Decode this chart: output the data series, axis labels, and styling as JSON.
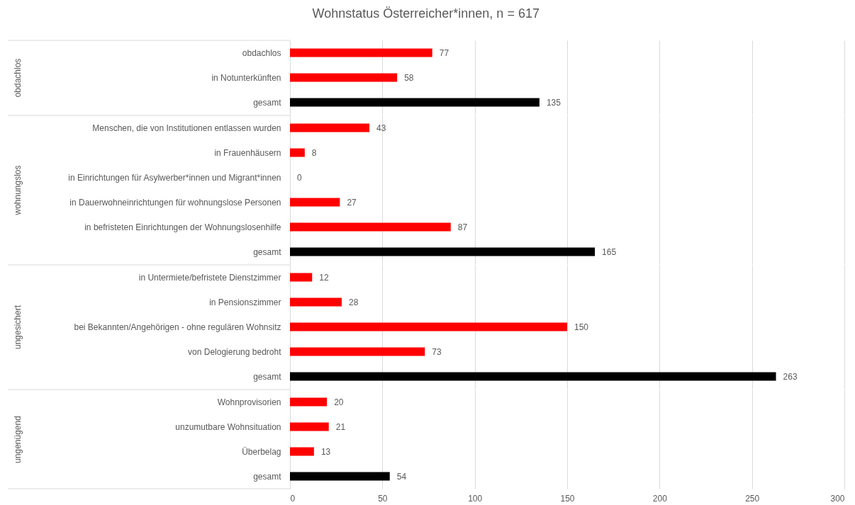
{
  "chart_data": [
    {
      "type": "bar",
      "orientation": "horizontal",
      "title": "Wohnstatus Österreicher*innen, n = 617",
      "ylabel": "obdachlos",
      "categories": [
        "obdachlos",
        "in Notunterkünften",
        "gesamt"
      ],
      "values": [
        77,
        58,
        135
      ],
      "colors": [
        "#ff0000",
        "#ff0000",
        "#000000"
      ],
      "xlim": [
        0,
        300
      ],
      "xticks": [
        0,
        50,
        100,
        150,
        200,
        250,
        300
      ],
      "data_labels": true,
      "grid": "x",
      "tick_labels": "y"
    },
    {
      "type": "bar",
      "orientation": "horizontal",
      "ylabel": "wohnungslos",
      "categories": [
        "Menschen, die von Institutionen entlassen wurden",
        "in Frauenhäusern",
        "in Einrichtungen für Asylwerber*innen und Migrant*innen",
        "in Dauerwohneinrichtungen für wohnungslose Personen",
        "in befristeten Einrichtungen der Wohnungslosenhilfe",
        "gesamt"
      ],
      "values": [
        43,
        8,
        0,
        27,
        87,
        165
      ],
      "colors": [
        "#ff0000",
        "#ff0000",
        "#ff0000",
        "#ff0000",
        "#ff0000",
        "#000000"
      ],
      "xlim": [
        0,
        300
      ],
      "xticks": [
        0,
        50,
        100,
        150,
        200,
        250,
        300
      ],
      "data_labels": true,
      "grid": "x",
      "tick_labels": "y"
    },
    {
      "type": "bar",
      "orientation": "horizontal",
      "ylabel": "ungesichert",
      "categories": [
        "in Untermiete/befristete Dienstzimmer",
        "in Pensionszimmer",
        "bei Bekannten/Angehörigen - ohne regulären Wohnsitz",
        "von Delogierung bedroht",
        "gesamt"
      ],
      "values": [
        12,
        28,
        150,
        73,
        263
      ],
      "colors": [
        "#ff0000",
        "#ff0000",
        "#ff0000",
        "#ff0000",
        "#000000"
      ],
      "xlim": [
        0,
        300
      ],
      "xticks": [
        0,
        50,
        100,
        150,
        200,
        250,
        300
      ],
      "data_labels": true,
      "grid": "x",
      "tick_labels": "y"
    },
    {
      "type": "bar",
      "orientation": "horizontal",
      "ylabel": "ungenügend",
      "categories": [
        "Wohnprovisorien",
        "unzumutbare Wohnsituation",
        "Überbelag",
        "gesamt"
      ],
      "values": [
        20,
        21,
        13,
        54
      ],
      "colors": [
        "#ff0000",
        "#ff0000",
        "#ff0000",
        "#000000"
      ],
      "xlim": [
        0,
        300
      ],
      "xticks": [
        0,
        50,
        100,
        150,
        200,
        250,
        300
      ],
      "data_labels": true,
      "grid": "x"
    }
  ]
}
